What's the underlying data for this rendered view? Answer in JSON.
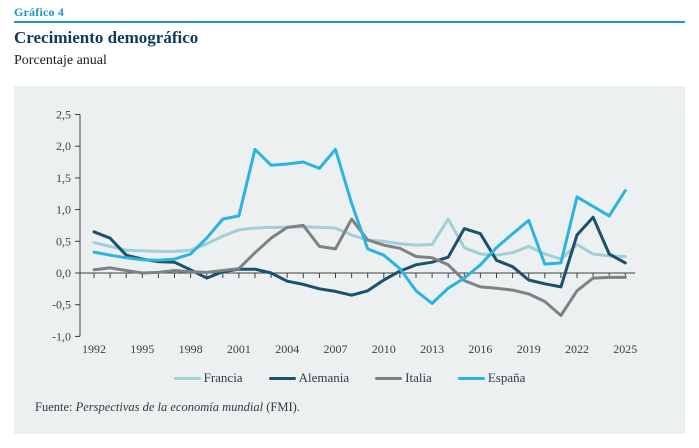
{
  "header": {
    "kicker": "Gráfico 4",
    "title": "Crecimiento demográfico",
    "subtitle": "Porcentaje anual"
  },
  "footer": {
    "source_prefix": "Fuente: ",
    "source_italic": "Perspectivas de la economía mundial",
    "source_suffix": " (FMI)."
  },
  "colors": {
    "accent_blue": "#1d94c9",
    "title_navy": "#0c3b5d",
    "panel_background": "#edf0f1",
    "axis": "#404041",
    "tick_text": "#414042"
  },
  "chart_data": {
    "type": "line",
    "title": "Crecimiento demográfico",
    "subtitle": "Porcentaje anual",
    "grid": false,
    "legend_position": "bottom",
    "x_start": 1992,
    "x_end": 2025,
    "x": [
      1992,
      1993,
      1994,
      1995,
      1996,
      1997,
      1998,
      1999,
      2000,
      2001,
      2002,
      2003,
      2004,
      2005,
      2006,
      2007,
      2008,
      2009,
      2010,
      2011,
      2012,
      2013,
      2014,
      2015,
      2016,
      2017,
      2018,
      2019,
      2020,
      2021,
      2022,
      2023,
      2024,
      2025
    ],
    "x_tick_labels": [
      "1992",
      "1995",
      "1998",
      "2001",
      "2004",
      "2007",
      "2010",
      "2013",
      "2016",
      "2019",
      "2022",
      "2025"
    ],
    "ylim": [
      -1.0,
      2.5
    ],
    "y_ticks": [
      2.5,
      2.0,
      1.5,
      1.0,
      0.5,
      0.0,
      -0.5,
      -1.0
    ],
    "y_tick_labels": [
      "2,5",
      "2,0",
      "1,5",
      "1,0",
      "0,5",
      "0,0",
      "-0,5",
      "-1,0"
    ],
    "series": [
      {
        "name": "Francia",
        "color": "#a2ced8",
        "values": [
          0.48,
          0.42,
          0.36,
          0.35,
          0.34,
          0.34,
          0.36,
          0.46,
          0.58,
          0.68,
          0.71,
          0.72,
          0.72,
          0.73,
          0.72,
          0.71,
          0.6,
          0.52,
          0.5,
          0.46,
          0.44,
          0.45,
          0.85,
          0.4,
          0.3,
          0.28,
          0.32,
          0.42,
          0.3,
          0.22,
          0.45,
          0.3,
          0.27,
          0.26
        ]
      },
      {
        "name": "Alemania",
        "color": "#1b516f",
        "values": [
          0.65,
          0.55,
          0.28,
          0.22,
          0.18,
          0.17,
          0.05,
          -0.08,
          0.02,
          0.06,
          0.06,
          0.0,
          -0.13,
          -0.18,
          -0.25,
          -0.29,
          -0.35,
          -0.28,
          -0.11,
          0.03,
          0.13,
          0.17,
          0.25,
          0.7,
          0.62,
          0.2,
          0.1,
          -0.11,
          -0.17,
          -0.22,
          0.6,
          0.88,
          0.3,
          0.16
        ]
      },
      {
        "name": "Italia",
        "color": "#7f8285",
        "values": [
          0.05,
          0.08,
          0.04,
          0.0,
          0.01,
          0.04,
          0.02,
          0.01,
          0.04,
          0.07,
          0.32,
          0.55,
          0.72,
          0.75,
          0.42,
          0.38,
          0.85,
          0.52,
          0.44,
          0.39,
          0.26,
          0.24,
          0.13,
          -0.12,
          -0.22,
          -0.24,
          -0.27,
          -0.33,
          -0.45,
          -0.67,
          -0.28,
          -0.08,
          -0.07,
          -0.07
        ]
      },
      {
        "name": "España",
        "color": "#29b4e1",
        "values": [
          0.33,
          0.28,
          0.24,
          0.21,
          0.2,
          0.22,
          0.3,
          0.55,
          0.85,
          0.9,
          1.95,
          1.7,
          1.72,
          1.75,
          1.65,
          1.95,
          1.1,
          0.38,
          0.28,
          0.07,
          -0.28,
          -0.48,
          -0.24,
          -0.08,
          0.13,
          0.4,
          0.62,
          0.83,
          0.14,
          0.16,
          1.2,
          1.05,
          0.9,
          1.3
        ]
      }
    ]
  }
}
